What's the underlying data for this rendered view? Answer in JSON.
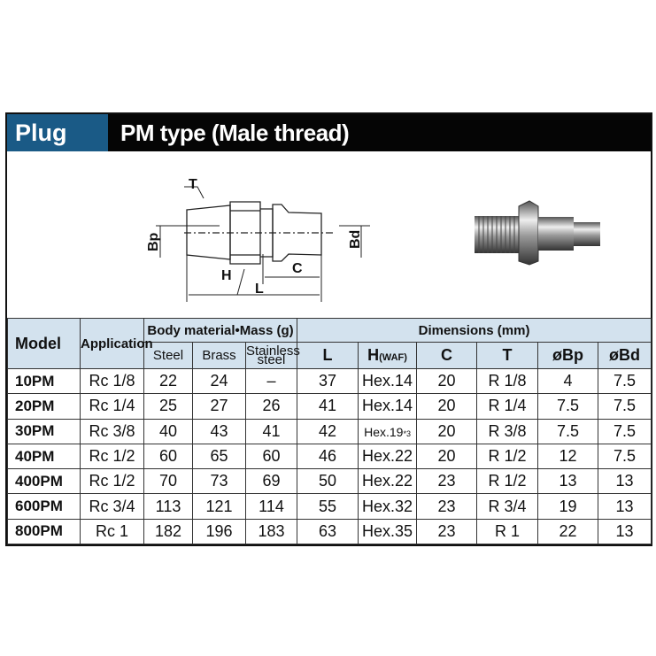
{
  "header": {
    "badge": "Plug",
    "title": "PM type (Male thread)"
  },
  "diagram": {
    "labels": {
      "T": "T",
      "Bp": "Bp",
      "Bd": "Bd",
      "H": "H",
      "L": "L",
      "C": "C"
    }
  },
  "table": {
    "headers": {
      "model": "Model",
      "application": "Application",
      "mass_group": "Body material•Mass (g)",
      "dim_group": "Dimensions (mm)",
      "steel": "Steel",
      "brass": "Brass",
      "stainless": "Stainless steel",
      "L": "L",
      "H": "H",
      "H_suffix": "(WAF)",
      "C": "C",
      "T": "T",
      "Bp": "øBp",
      "Bd": "øBd"
    },
    "rows": [
      {
        "model": "10PM",
        "app": "Rc 1/8",
        "steel": "22",
        "brass": "24",
        "stainless": "–",
        "L": "37",
        "H": "Hex.14",
        "H_note": "",
        "C": "20",
        "T": "R 1/8",
        "Bp": "4",
        "Bd": "7.5"
      },
      {
        "model": "20PM",
        "app": "Rc 1/4",
        "steel": "25",
        "brass": "27",
        "stainless": "26",
        "L": "41",
        "H": "Hex.14",
        "H_note": "",
        "C": "20",
        "T": "R 1/4",
        "Bp": "7.5",
        "Bd": "7.5"
      },
      {
        "model": "30PM",
        "app": "Rc 3/8",
        "steel": "40",
        "brass": "43",
        "stainless": "41",
        "L": "42",
        "H": "Hex.19",
        "H_note": "*3",
        "C": "20",
        "T": "R 3/8",
        "Bp": "7.5",
        "Bd": "7.5"
      },
      {
        "model": "40PM",
        "app": "Rc 1/2",
        "steel": "60",
        "brass": "65",
        "stainless": "60",
        "L": "46",
        "H": "Hex.22",
        "H_note": "",
        "C": "20",
        "T": "R 1/2",
        "Bp": "12",
        "Bd": "7.5"
      },
      {
        "model": "400PM",
        "app": "Rc 1/2",
        "steel": "70",
        "brass": "73",
        "stainless": "69",
        "L": "50",
        "H": "Hex.22",
        "H_note": "",
        "C": "23",
        "T": "R 1/2",
        "Bp": "13",
        "Bd": "13"
      },
      {
        "model": "600PM",
        "app": "Rc 3/4",
        "steel": "113",
        "brass": "121",
        "stainless": "114",
        "L": "55",
        "H": "Hex.32",
        "H_note": "",
        "C": "23",
        "T": "R 3/4",
        "Bp": "19",
        "Bd": "13"
      },
      {
        "model": "800PM",
        "app": "Rc 1",
        "steel": "182",
        "brass": "196",
        "stainless": "183",
        "L": "63",
        "H": "Hex.35",
        "H_note": "",
        "C": "23",
        "T": "R 1",
        "Bp": "22",
        "Bd": "13"
      }
    ]
  },
  "colors": {
    "badge": "#1a5a86",
    "header_bg": "#050505",
    "table_header": "#d3e2ee"
  }
}
